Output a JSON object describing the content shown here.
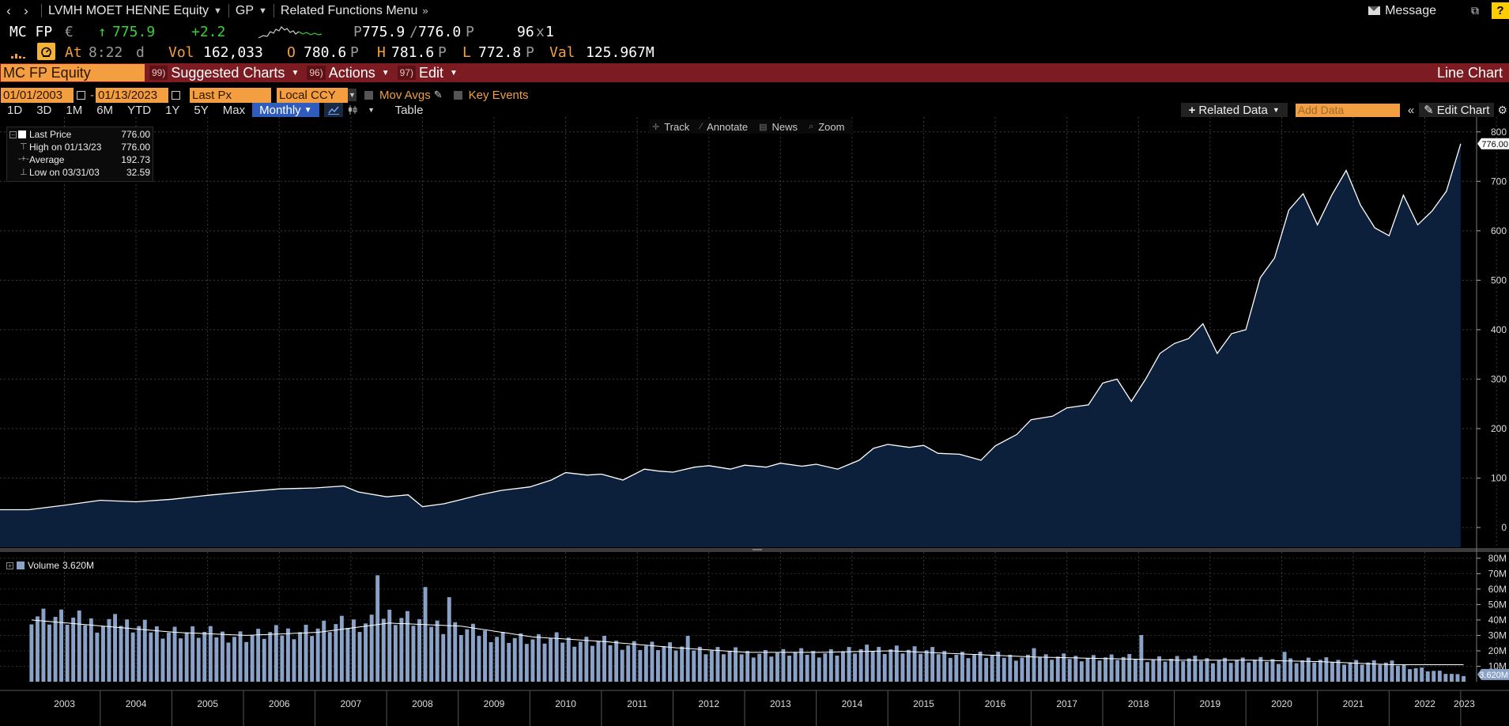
{
  "topbar": {
    "security": "LVMH MOET HENNE Equity",
    "function": "GP",
    "related_menu": "Related Functions Menu",
    "message": "Message",
    "help": "?"
  },
  "quote": {
    "ticker": "MC FP",
    "currency": "€",
    "last": "775.9",
    "change": "+2.2",
    "bid": "775.9",
    "ask": "776.0",
    "bid_suffix": "P",
    "ask_suffix": "P",
    "size_a": "96",
    "size_b": "1",
    "at_label": "At",
    "time": "8:22",
    "time_flag": "d",
    "vol_label": "Vol",
    "volume": "162,033",
    "open_label": "O",
    "open": "780.6",
    "open_suffix": "P",
    "high_label": "H",
    "high": "781.6",
    "high_suffix": "P",
    "low_label": "L",
    "low": "772.8",
    "low_suffix": "P",
    "val_label": "Val",
    "value": "125.967M"
  },
  "actionbar": {
    "ticker_input": "MC FP Equity",
    "suggested_num": "99)",
    "suggested": "Suggested Charts",
    "actions_num": "96)",
    "actions": "Actions",
    "edit_num": "97)",
    "edit": "Edit",
    "chart_type": "Line Chart"
  },
  "controls": {
    "start_date": "01/01/2003",
    "end_date": "01/13/2023",
    "field": "Last Px",
    "currency": "Local CCY",
    "mov_avgs": "Mov Avgs",
    "key_events": "Key Events",
    "periods": [
      "1D",
      "3D",
      "1M",
      "6M",
      "YTD",
      "1Y",
      "5Y",
      "Max"
    ],
    "frequency": "Monthly",
    "table": "Table",
    "related_data": "Related Data",
    "add_data_placeholder": "Add Data",
    "edit_chart": "Edit Chart"
  },
  "chart_tools": [
    "Track",
    "Annotate",
    "News",
    "Zoom"
  ],
  "legend": {
    "last_price_label": "Last Price",
    "last_price": "776.00",
    "high_label": "High on 01/13/23",
    "high": "776.00",
    "average_label": "Average",
    "average": "192.73",
    "low_label": "Low on 03/31/03",
    "low": "32.59",
    "volume_label": "Volume",
    "volume_value": "3.620M"
  },
  "colors": {
    "accent": "#f39f41",
    "price_fill": "#0c1f3b",
    "price_line": "#ffffff",
    "volume_bar": "#8aa2c8",
    "action_bar": "#7c1c22",
    "up": "#3ad03a"
  },
  "chart_data": [
    {
      "type": "area",
      "ylim": [
        -40,
        830
      ],
      "yticks": [
        0,
        100,
        200,
        300,
        400,
        500,
        600,
        700,
        800
      ],
      "last_label": "776.00",
      "x": [
        2003.0,
        2003.5,
        2004.0,
        2004.5,
        2005.0,
        2005.5,
        2006.0,
        2006.5,
        2007.0,
        2007.4,
        2007.6,
        2008.0,
        2008.3,
        2008.5,
        2008.8,
        2009.0,
        2009.3,
        2009.6,
        2010.0,
        2010.3,
        2010.5,
        2010.8,
        2011.0,
        2011.3,
        2011.6,
        2011.8,
        2012.0,
        2012.3,
        2012.5,
        2012.8,
        2013.0,
        2013.3,
        2013.5,
        2013.8,
        2014.0,
        2014.3,
        2014.6,
        2014.8,
        2015.0,
        2015.3,
        2015.5,
        2015.7,
        2016.0,
        2016.3,
        2016.5,
        2016.8,
        2017.0,
        2017.3,
        2017.5,
        2017.8,
        2018.0,
        2018.2,
        2018.4,
        2018.6,
        2018.8,
        2019.0,
        2019.2,
        2019.4,
        2019.6,
        2019.8,
        2020.0,
        2020.2,
        2020.4,
        2020.6,
        2020.8,
        2021.0,
        2021.2,
        2021.4,
        2021.6,
        2021.8,
        2022.0,
        2022.2,
        2022.4,
        2022.6,
        2022.8,
        2023.0
      ],
      "y": [
        36,
        45,
        55,
        52,
        57,
        65,
        72,
        78,
        80,
        84,
        72,
        62,
        66,
        42,
        48,
        55,
        66,
        75,
        82,
        96,
        111,
        106,
        108,
        96,
        118,
        114,
        112,
        122,
        125,
        118,
        126,
        122,
        130,
        124,
        128,
        118,
        136,
        160,
        168,
        162,
        166,
        150,
        148,
        136,
        165,
        188,
        218,
        225,
        242,
        248,
        292,
        300,
        255,
        300,
        352,
        372,
        382,
        412,
        352,
        392,
        400,
        505,
        545,
        642,
        675,
        612,
        672,
        722,
        652,
        606,
        590,
        672,
        612,
        640,
        680,
        776
      ]
    },
    {
      "type": "bar",
      "title": "Volume",
      "ylim": [
        0,
        83
      ],
      "yticks": [
        10,
        20,
        30,
        40,
        50,
        60,
        70,
        80
      ],
      "ytick_labels": [
        "10M",
        "20M",
        "30M",
        "40M",
        "50M",
        "60M",
        "70M",
        "80M"
      ],
      "last_label": "3.620M",
      "categories": [
        "2003",
        "2004",
        "2005",
        "2006",
        "2007",
        "2008",
        "2009",
        "2010",
        "2011",
        "2012",
        "2013",
        "2014",
        "2015",
        "2016",
        "2017",
        "2018",
        "2019",
        "2020",
        "2021",
        "2022",
        "2023"
      ],
      "series": [
        {
          "name": "Volume",
          "values": [
            45,
            38,
            33,
            30,
            35,
            42,
            34,
            27,
            26,
            22,
            19,
            19,
            22,
            18,
            16,
            16,
            15,
            14,
            14,
            12,
            3.62
          ]
        },
        {
          "values": [
            40,
            36,
            32,
            30,
            32,
            38,
            36,
            29,
            26,
            22,
            19,
            19,
            20,
            18,
            16,
            15,
            14,
            14,
            13,
            11,
            11
          ]
        }
      ]
    }
  ]
}
